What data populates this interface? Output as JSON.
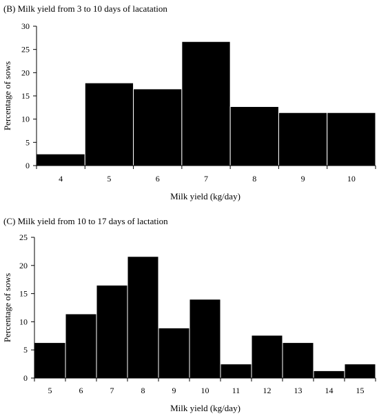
{
  "chart_data": [
    {
      "type": "bar",
      "title": "(B) Milk yield from 3 to 10 days of lacatation",
      "xlabel": "Milk yield (kg/day)",
      "ylabel": "Percentage of sows",
      "categories": [
        "4",
        "5",
        "6",
        "7",
        "8",
        "9",
        "10"
      ],
      "values": [
        2.5,
        17.8,
        16.5,
        26.7,
        12.7,
        11.4,
        11.4
      ],
      "ylim": [
        0,
        30
      ],
      "yticks": [
        "0",
        "5",
        "10",
        "15",
        "20",
        "25",
        "30"
      ],
      "grid": false,
      "bar_color": "#000000"
    },
    {
      "type": "bar",
      "title": "(C) Milk yield from 10 to 17 days of lactation",
      "xlabel": "Milk yield (kg/day)",
      "ylabel": "Percentage of sows",
      "categories": [
        "5",
        "6",
        "7",
        "8",
        "9",
        "10",
        "11",
        "12",
        "13",
        "14",
        "15"
      ],
      "values": [
        6.3,
        11.4,
        16.5,
        21.6,
        8.9,
        14.0,
        2.5,
        7.6,
        6.3,
        1.3,
        2.5
      ],
      "ylim": [
        0,
        25
      ],
      "yticks": [
        "0",
        "5",
        "10",
        "15",
        "20",
        "25"
      ],
      "grid": false,
      "bar_color": "#000000"
    }
  ]
}
